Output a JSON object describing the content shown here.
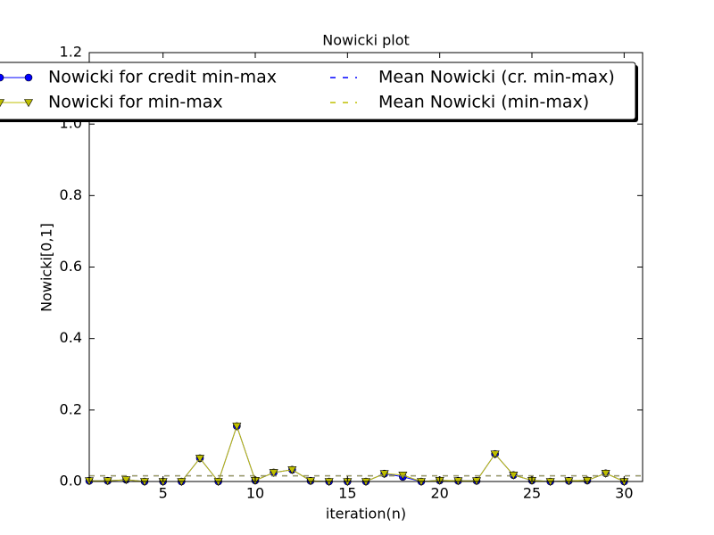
{
  "chart_data": {
    "type": "line",
    "title": "Nowicki plot",
    "x_label": "iteration(n)",
    "y_label": "Nowicki[0,1]",
    "x": [
      1,
      2,
      3,
      4,
      5,
      6,
      7,
      8,
      9,
      10,
      11,
      12,
      13,
      14,
      15,
      16,
      17,
      18,
      19,
      20,
      21,
      22,
      23,
      24,
      25,
      26,
      27,
      28,
      29,
      30
    ],
    "series": [
      {
        "name": "Nowicki for credit min-max",
        "color": "#0000ff",
        "marker": "circle",
        "values": [
          0.002,
          0.002,
          0.005,
          0.0,
          0.0,
          0.0,
          0.065,
          0.0,
          0.155,
          0.003,
          0.025,
          0.033,
          0.002,
          0.0,
          0.0,
          0.0,
          0.022,
          0.013,
          0.0,
          0.003,
          0.002,
          0.002,
          0.077,
          0.018,
          0.003,
          0.0,
          0.002,
          0.003,
          0.023,
          0.0
        ]
      },
      {
        "name": "Nowicki for min-max",
        "color": "#bfbf00",
        "marker": "triangle-down",
        "values": [
          0.002,
          0.002,
          0.005,
          0.0,
          0.0,
          0.0,
          0.065,
          0.0,
          0.155,
          0.003,
          0.025,
          0.033,
          0.002,
          0.0,
          0.0,
          0.0,
          0.022,
          0.018,
          0.0,
          0.003,
          0.002,
          0.002,
          0.077,
          0.018,
          0.003,
          0.0,
          0.002,
          0.003,
          0.023,
          0.0
        ]
      },
      {
        "name": "Mean Nowicki (cr. min-max)",
        "color": "#0000ff",
        "dashed": true,
        "value": 0.016
      },
      {
        "name": "Mean Nowicki (min-max)",
        "color": "#bfbf00",
        "dashed": true,
        "value": 0.016
      }
    ],
    "xlim": [
      1,
      31
    ],
    "xticks": [
      5,
      10,
      15,
      20,
      25,
      30
    ],
    "ylim": [
      0,
      1.2
    ],
    "yticks": [
      {
        "value": 0,
        "label": "0.0"
      },
      0.2,
      0.4,
      0.6,
      0.8,
      {
        "value": 1,
        "label": "1.0"
      },
      1.2
    ],
    "grid": false,
    "legend": "upper center"
  }
}
